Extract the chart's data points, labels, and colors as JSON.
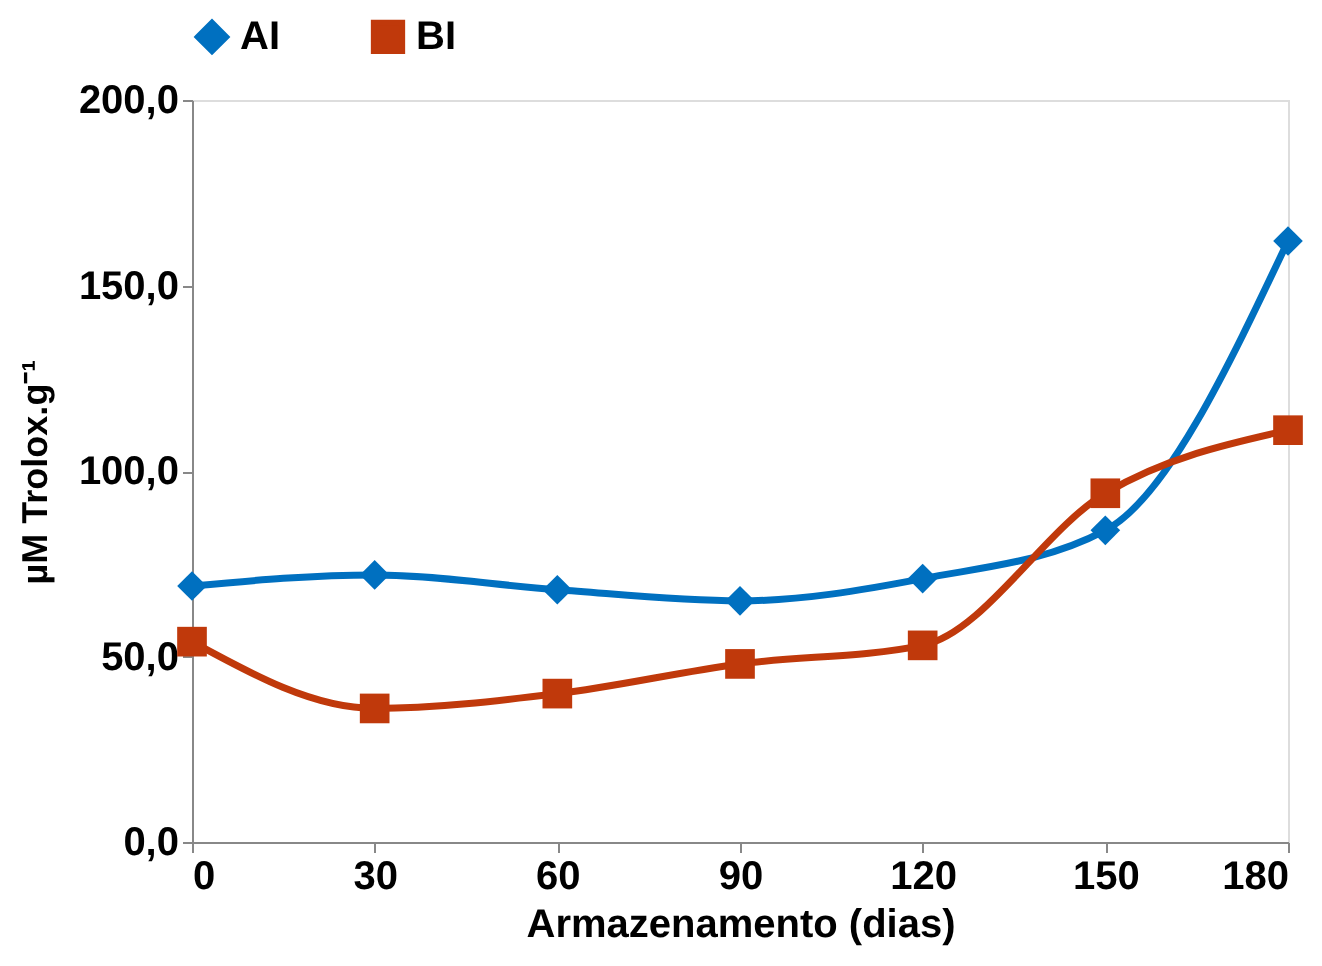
{
  "chart_data": {
    "type": "line",
    "xlabel": "Armazenamento (dias)",
    "ylabel": "µM Trolox.g⁻¹",
    "x": [
      0,
      30,
      60,
      90,
      120,
      150,
      180
    ],
    "series": [
      {
        "name": "AI",
        "color": "#0070c0",
        "marker": "diamond",
        "values": [
          69,
          72,
          68,
          65,
          71,
          84,
          162
        ]
      },
      {
        "name": "BI",
        "color": "#c0390b",
        "marker": "square",
        "values": [
          54,
          36,
          40,
          48,
          53,
          94,
          111
        ]
      }
    ],
    "xlim": [
      0,
      180
    ],
    "xticks": [
      0,
      30,
      60,
      90,
      120,
      150,
      180
    ],
    "ylim": [
      0,
      200
    ],
    "yticks": [
      {
        "value": 0,
        "label": "0,0"
      },
      {
        "value": 50,
        "label": "50,0"
      },
      {
        "value": 100,
        "label": "100,0"
      },
      {
        "value": 150,
        "label": "150,0"
      },
      {
        "value": 200,
        "label": "200,0"
      }
    ],
    "grid": false,
    "legend": "top",
    "line_style": "solid"
  }
}
